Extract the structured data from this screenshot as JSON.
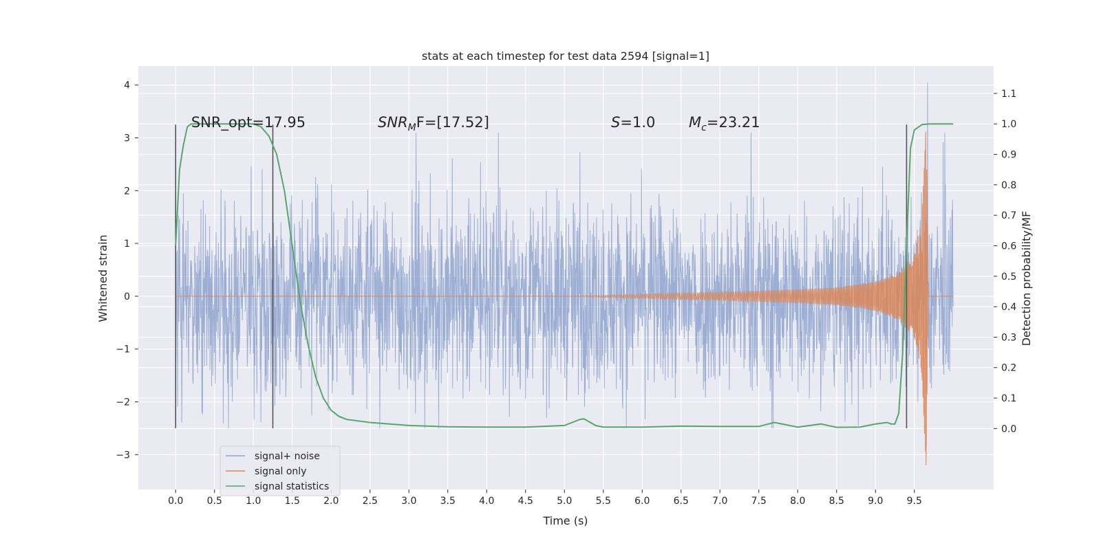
{
  "chart_data": {
    "type": "line",
    "title": "stats at each timestep for test data 2594 [signal=1]",
    "xlabel": "Time (s)",
    "ylabel_left": "Whitened strain",
    "ylabel_right": "Detection probability/MF",
    "xlim": [
      -0.48,
      10.52
    ],
    "ylim_left": [
      -3.66,
      4.36
    ],
    "ylim_right": [
      -0.2,
      1.19
    ],
    "x_ticks": [
      "0.0",
      "0.5",
      "1.0",
      "1.5",
      "2.0",
      "2.5",
      "3.0",
      "3.5",
      "4.0",
      "4.5",
      "5.0",
      "5.5",
      "6.0",
      "6.5",
      "7.0",
      "7.5",
      "8.0",
      "8.5",
      "9.0",
      "9.5"
    ],
    "y_ticks_left": [
      "−3",
      "−2",
      "−1",
      "0",
      "1",
      "2",
      "3",
      "4"
    ],
    "y_ticks_right": [
      "0.0",
      "0.1",
      "0.2",
      "0.3",
      "0.4",
      "0.5",
      "0.6",
      "0.7",
      "0.8",
      "0.9",
      "1.0",
      "1.1"
    ],
    "grid": true,
    "legend_position": "lower-left",
    "annotations": [
      {
        "text": "SNR_opt=17.95",
        "x": 0.2
      },
      {
        "text": "SNR",
        "sub": "M",
        "tail": "F=[17.52]",
        "x": 2.6,
        "italic": true
      },
      {
        "text": "S",
        "tail": "=1.0",
        "x": 5.6,
        "italic": true
      },
      {
        "text": "M",
        "sub": "c",
        "tail": "=23.21",
        "x": 6.6,
        "italic": true
      }
    ],
    "vertical_lines": [
      {
        "x": 0.0,
        "y_range": [
          -2.5,
          3.25
        ]
      },
      {
        "x": 1.25,
        "y_range": [
          -2.5,
          3.25
        ]
      },
      {
        "x": 9.4,
        "y_range": [
          -2.5,
          3.25
        ]
      }
    ],
    "series": [
      {
        "name": "signal+ noise",
        "color": "#8ea3cf",
        "axis": "left",
        "envelope_x": [
          0.0,
          10.0
        ],
        "envelope_y": [
          -2.5,
          3.1
        ],
        "spike_x": [
          9.67
        ],
        "spike_y": [
          4.05
        ]
      },
      {
        "name": "signal only",
        "color": "#dd8452",
        "axis": "left",
        "x": [
          0.0,
          5.0,
          6.0,
          7.0,
          8.0,
          8.5,
          9.0,
          9.3,
          9.5,
          9.6,
          9.65,
          9.68,
          10.0
        ],
        "amplitude": [
          0.0,
          0.0,
          0.04,
          0.08,
          0.13,
          0.17,
          0.28,
          0.45,
          0.8,
          1.5,
          3.2,
          0.0,
          0.0
        ]
      },
      {
        "name": "signal statistics",
        "color": "#55a868",
        "axis": "right",
        "x": [
          0.0,
          0.05,
          0.1,
          0.15,
          0.2,
          0.5,
          1.0,
          1.1,
          1.2,
          1.3,
          1.4,
          1.5,
          1.6,
          1.7,
          1.8,
          1.9,
          2.0,
          2.1,
          2.2,
          2.5,
          3.0,
          3.5,
          4.0,
          4.5,
          5.0,
          5.1,
          5.2,
          5.25,
          5.3,
          5.4,
          5.5,
          6.0,
          6.5,
          7.0,
          7.5,
          7.7,
          8.0,
          8.3,
          8.5,
          8.8,
          9.0,
          9.15,
          9.2,
          9.25,
          9.3,
          9.35,
          9.4,
          9.45,
          9.5,
          9.6,
          9.7,
          10.0
        ],
        "y": [
          0.6,
          0.85,
          0.93,
          0.99,
          1.0,
          1.0,
          1.0,
          0.99,
          0.96,
          0.9,
          0.78,
          0.6,
          0.42,
          0.28,
          0.17,
          0.1,
          0.06,
          0.04,
          0.03,
          0.02,
          0.01,
          0.006,
          0.005,
          0.005,
          0.01,
          0.02,
          0.03,
          0.032,
          0.025,
          0.01,
          0.005,
          0.005,
          0.008,
          0.007,
          0.007,
          0.02,
          0.005,
          0.015,
          0.004,
          0.005,
          0.015,
          0.02,
          0.015,
          0.015,
          0.05,
          0.25,
          0.6,
          0.92,
          0.98,
          0.998,
          1.0,
          1.0
        ]
      }
    ]
  }
}
